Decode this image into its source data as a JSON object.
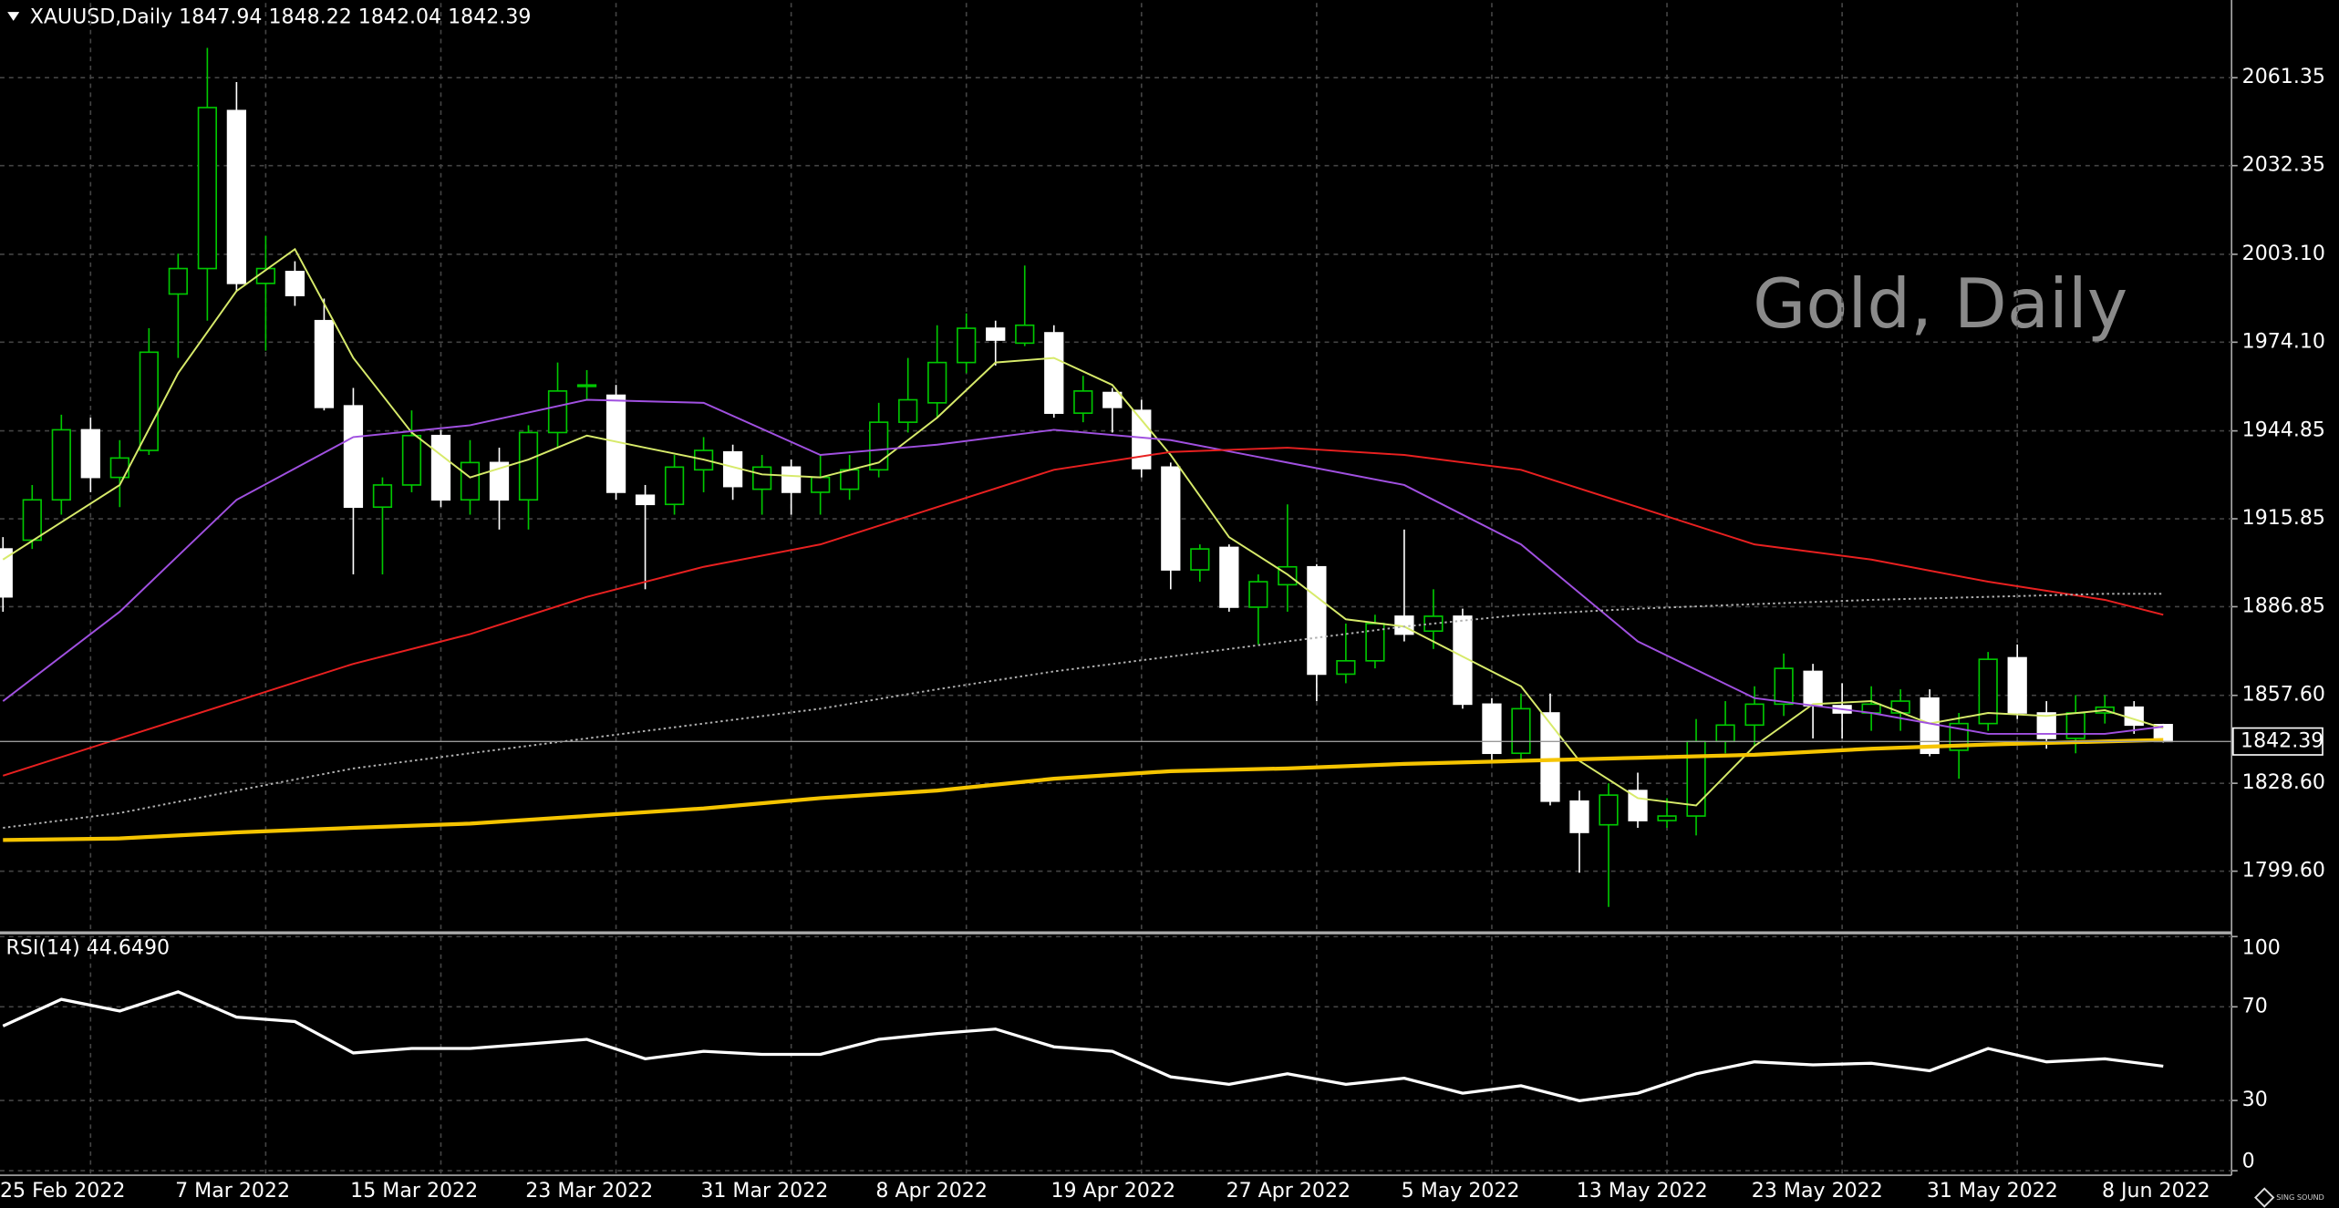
{
  "chart_data": [
    {
      "type": "candlestick",
      "title": "XAUUSD,Daily  1847.94 1848.22 1842.04 1842.39",
      "watermark": "Gold, Daily",
      "logo": "SING SOUND",
      "categories": [
        "25 Feb 2022",
        null,
        null,
        null,
        null,
        null,
        "7 Mar 2022",
        null,
        null,
        null,
        null,
        null,
        "15 Mar 2022",
        null,
        null,
        null,
        null,
        null,
        "23 Mar 2022",
        null,
        null,
        null,
        null,
        null,
        "31 Mar 2022",
        null,
        null,
        null,
        null,
        null,
        "8 Apr 2022",
        null,
        null,
        null,
        null,
        null,
        "19 Apr 2022",
        null,
        null,
        null,
        null,
        null,
        "27 Apr 2022",
        null,
        null,
        null,
        null,
        null,
        "5 May 2022",
        null,
        null,
        null,
        null,
        null,
        "13 May 2022",
        null,
        null,
        null,
        null,
        null,
        "23 May 2022",
        null,
        null,
        null,
        null,
        null,
        "31 May 2022",
        null,
        null,
        null,
        null,
        null,
        "8 Jun 2022",
        null,
        null
      ],
      "open": [
        1905.9,
        1908.8,
        1922.1,
        1945.2,
        1929.5,
        1938.4,
        1990.0,
        1998.4,
        2050.5,
        1993.5,
        1997.4,
        1981.2,
        1953.1,
        1919.7,
        1927.0,
        1943.3,
        1922.1,
        1934.4,
        1922.1,
        1944.3,
        1959.5,
        1956.6,
        1923.6,
        1920.6,
        1932.0,
        1937.9,
        1925.6,
        1932.9,
        1924.6,
        1925.6,
        1932.0,
        1947.7,
        1954.1,
        1967.4,
        1978.7,
        1973.8,
        1977.2,
        1950.7,
        1957.5,
        1951.6,
        1932.9,
        1899.0,
        1906.4,
        1886.7,
        1894.1,
        1900.0,
        1864.6,
        1869.0,
        1883.7,
        1878.8,
        1883.7,
        1854.7,
        1838.5,
        1851.8,
        1822.7,
        1814.9,
        1826.2,
        1816.3,
        1817.8,
        1842.4,
        1847.8,
        1854.7,
        1865.5,
        1854.2,
        1851.8,
        1851.8,
        1856.7,
        1839.5,
        1848.3,
        1870.0,
        1851.8,
        1843.4,
        1851.8,
        1853.7,
        1847.94
      ],
      "high": [
        1909.8,
        1927.0,
        1950.2,
        1949.2,
        1941.8,
        1978.7,
        2003.3,
        2071.2,
        2059.9,
        2009.2,
        2000.8,
        1988.5,
        1959.0,
        1929.5,
        1951.6,
        1945.2,
        1941.8,
        1939.3,
        1946.7,
        1967.4,
        1964.9,
        1960.0,
        1927.0,
        1936.9,
        1942.8,
        1940.3,
        1936.9,
        1935.4,
        1936.9,
        1936.9,
        1954.1,
        1968.9,
        1979.7,
        1983.6,
        1981.2,
        1999.4,
        1979.7,
        1963.0,
        1959.0,
        1955.1,
        1934.4,
        1907.4,
        1907.4,
        1897.5,
        1920.6,
        1900.9,
        1881.3,
        1884.2,
        1912.3,
        1892.6,
        1886.2,
        1856.7,
        1858.2,
        1858.2,
        1826.2,
        1828.6,
        1832.1,
        1823.7,
        1849.8,
        1855.7,
        1860.6,
        1871.4,
        1868.0,
        1861.6,
        1860.6,
        1859.6,
        1859.6,
        1851.8,
        1871.9,
        1874.4,
        1855.7,
        1857.7,
        1857.7,
        1855.7,
        1848.22
      ],
      "low": [
        1885.2,
        1905.9,
        1917.2,
        1924.6,
        1919.7,
        1936.9,
        1968.9,
        1981.2,
        1991.0,
        1971.3,
        1986.1,
        1951.6,
        1897.5,
        1897.5,
        1924.6,
        1919.7,
        1917.2,
        1912.3,
        1912.3,
        1939.3,
        1955.1,
        1922.1,
        1892.6,
        1917.2,
        1924.6,
        1922.1,
        1917.2,
        1917.2,
        1917.2,
        1922.1,
        1929.5,
        1944.3,
        1949.2,
        1963.9,
        1966.4,
        1972.8,
        1949.2,
        1947.7,
        1944.3,
        1929.5,
        1892.6,
        1895.1,
        1885.2,
        1874.4,
        1885.2,
        1855.7,
        1861.6,
        1866.5,
        1875.4,
        1872.9,
        1853.2,
        1836.0,
        1836.0,
        1821.3,
        1799.1,
        1787.8,
        1813.9,
        1813.9,
        1811.4,
        1838.5,
        1840.9,
        1850.8,
        1843.4,
        1843.4,
        1845.9,
        1845.9,
        1837.5,
        1830.1,
        1845.9,
        1849.8,
        1840.0,
        1838.5,
        1848.3,
        1844.9,
        1842.04
      ],
      "close": [
        1890.1,
        1922.1,
        1945.2,
        1929.5,
        1935.9,
        1970.8,
        1998.4,
        2051.5,
        1993.5,
        1998.4,
        1989.5,
        1952.6,
        1919.7,
        1927.0,
        1943.3,
        1922.1,
        1934.4,
        1922.1,
        1944.3,
        1958.0,
        1960.0,
        1924.6,
        1920.6,
        1932.9,
        1938.4,
        1926.5,
        1932.9,
        1924.6,
        1929.5,
        1932.0,
        1947.7,
        1955.1,
        1967.4,
        1978.7,
        1974.8,
        1979.7,
        1950.7,
        1958.0,
        1952.6,
        1932.4,
        1899.0,
        1905.9,
        1886.7,
        1895.1,
        1900.0,
        1864.6,
        1869.0,
        1881.3,
        1877.8,
        1883.7,
        1854.7,
        1838.5,
        1853.2,
        1822.7,
        1812.4,
        1824.7,
        1816.3,
        1817.8,
        1842.4,
        1847.8,
        1854.7,
        1866.5,
        1854.2,
        1851.8,
        1854.7,
        1855.7,
        1838.5,
        1848.3,
        1869.5,
        1851.8,
        1843.4,
        1851.8,
        1853.7,
        1847.8,
        1842.39
      ],
      "up_color": "#00c800",
      "down_color": "#ffffff",
      "series": [
        {
          "color": "#d7ea6a",
          "style": "solid",
          "x": [
            0,
            2,
            4,
            6,
            8,
            10,
            12,
            14,
            16,
            18,
            20,
            22,
            24,
            26,
            28,
            30,
            32,
            34,
            36,
            38,
            40,
            42,
            44,
            46,
            48,
            50,
            52,
            54,
            56,
            58,
            60,
            62,
            64,
            66,
            68,
            70,
            72,
            74
          ],
          "values": [
            1902.4,
            1914.7,
            1927.0,
            1963.9,
            1991.0,
            2004.8,
            1968.9,
            1944.3,
            1929.5,
            1935.4,
            1943.3,
            1939.3,
            1935.4,
            1930.5,
            1929.5,
            1934.4,
            1949.2,
            1967.4,
            1968.9,
            1960.0,
            1936.9,
            1909.8,
            1897.5,
            1882.7,
            1880.3,
            1870.4,
            1860.6,
            1836.0,
            1823.7,
            1821.3,
            1840.9,
            1854.7,
            1855.7,
            1848.3,
            1851.8,
            1850.8,
            1852.7,
            1846.8
          ]
        },
        {
          "color": "#a050e0",
          "style": "solid",
          "x": [
            0,
            4,
            8,
            12,
            16,
            20,
            24,
            28,
            32,
            36,
            40,
            44,
            48,
            52,
            56,
            60,
            64,
            68,
            72,
            74
          ],
          "values": [
            1855.7,
            1885.2,
            1922.1,
            1942.8,
            1946.7,
            1955.1,
            1954.1,
            1936.9,
            1940.3,
            1945.2,
            1941.8,
            1934.4,
            1927.0,
            1907.4,
            1875.4,
            1856.7,
            1851.8,
            1844.9,
            1844.9,
            1847.3
          ]
        },
        {
          "color": "#e82020",
          "style": "solid",
          "x": [
            0,
            4,
            8,
            12,
            16,
            20,
            24,
            28,
            32,
            36,
            40,
            44,
            48,
            52,
            56,
            60,
            64,
            68,
            72,
            74
          ],
          "values": [
            1831.1,
            1843.4,
            1855.7,
            1868.0,
            1877.8,
            1890.1,
            1900.0,
            1907.4,
            1919.7,
            1932.0,
            1937.9,
            1939.3,
            1936.9,
            1932.0,
            1919.7,
            1907.4,
            1902.4,
            1895.1,
            1889.1,
            1884.2
          ]
        },
        {
          "color": "#b0b0b0",
          "style": "dotted",
          "x": [
            0,
            4,
            8,
            12,
            16,
            20,
            24,
            28,
            32,
            36,
            40,
            44,
            48,
            52,
            56,
            60,
            64,
            68,
            72,
            74
          ],
          "values": [
            1813.9,
            1818.8,
            1826.2,
            1833.5,
            1838.5,
            1843.4,
            1848.3,
            1853.2,
            1859.6,
            1865.5,
            1870.4,
            1875.4,
            1880.3,
            1884.2,
            1886.2,
            1887.7,
            1889.1,
            1890.1,
            1891.1,
            1891.1
          ]
        },
        {
          "color": "#f5c400",
          "style": "bold",
          "x": [
            0,
            4,
            8,
            12,
            16,
            20,
            24,
            28,
            32,
            36,
            40,
            44,
            48,
            52,
            56,
            60,
            64,
            68,
            72,
            74
          ],
          "values": [
            1809.9,
            1810.4,
            1812.4,
            1813.9,
            1815.3,
            1817.8,
            1820.3,
            1823.7,
            1826.2,
            1830.1,
            1832.6,
            1833.5,
            1835.0,
            1836.0,
            1837.0,
            1838.0,
            1840.0,
            1841.4,
            1842.4,
            1842.9
          ]
        }
      ],
      "last_price": 1842.39,
      "ylim": [
        1780,
        2086
      ],
      "yticks": [
        2061.35,
        2032.35,
        {
          "value": 2003.1,
          "label": "2003.10"
        },
        {
          "value": 1974.1,
          "label": "1974.10"
        },
        1944.85,
        1915.85,
        1886.85,
        {
          "value": 1857.6,
          "label": "1857.60"
        },
        {
          "value": 1828.6,
          "label": "1828.60"
        },
        {
          "value": 1799.6,
          "label": "1799.60"
        }
      ],
      "grid": true
    },
    {
      "type": "line",
      "title": "RSI(14) 44.6490",
      "color": "#ffffff",
      "x": [
        0,
        2,
        4,
        6,
        8,
        10,
        12,
        14,
        16,
        18,
        20,
        22,
        24,
        26,
        28,
        30,
        32,
        34,
        36,
        38,
        40,
        42,
        44,
        46,
        48,
        50,
        52,
        54,
        56,
        58,
        60,
        62,
        64,
        66,
        68,
        70,
        72,
        74
      ],
      "values": [
        61.8,
        73.2,
        68.2,
        76.4,
        65.6,
        63.7,
        50.3,
        52.2,
        52.2,
        54.1,
        56.1,
        47.8,
        51.0,
        49.7,
        49.7,
        56.1,
        58.6,
        60.5,
        52.9,
        51.0,
        40.1,
        36.9,
        41.4,
        36.9,
        39.5,
        33.1,
        36.3,
        29.9,
        33.1,
        41.4,
        46.5,
        45.2,
        45.9,
        42.7,
        52.2,
        46.5,
        47.8,
        44.649
      ],
      "ylim": [
        0,
        100
      ],
      "yticks": [
        100,
        70,
        30,
        0
      ],
      "grid": true
    }
  ]
}
